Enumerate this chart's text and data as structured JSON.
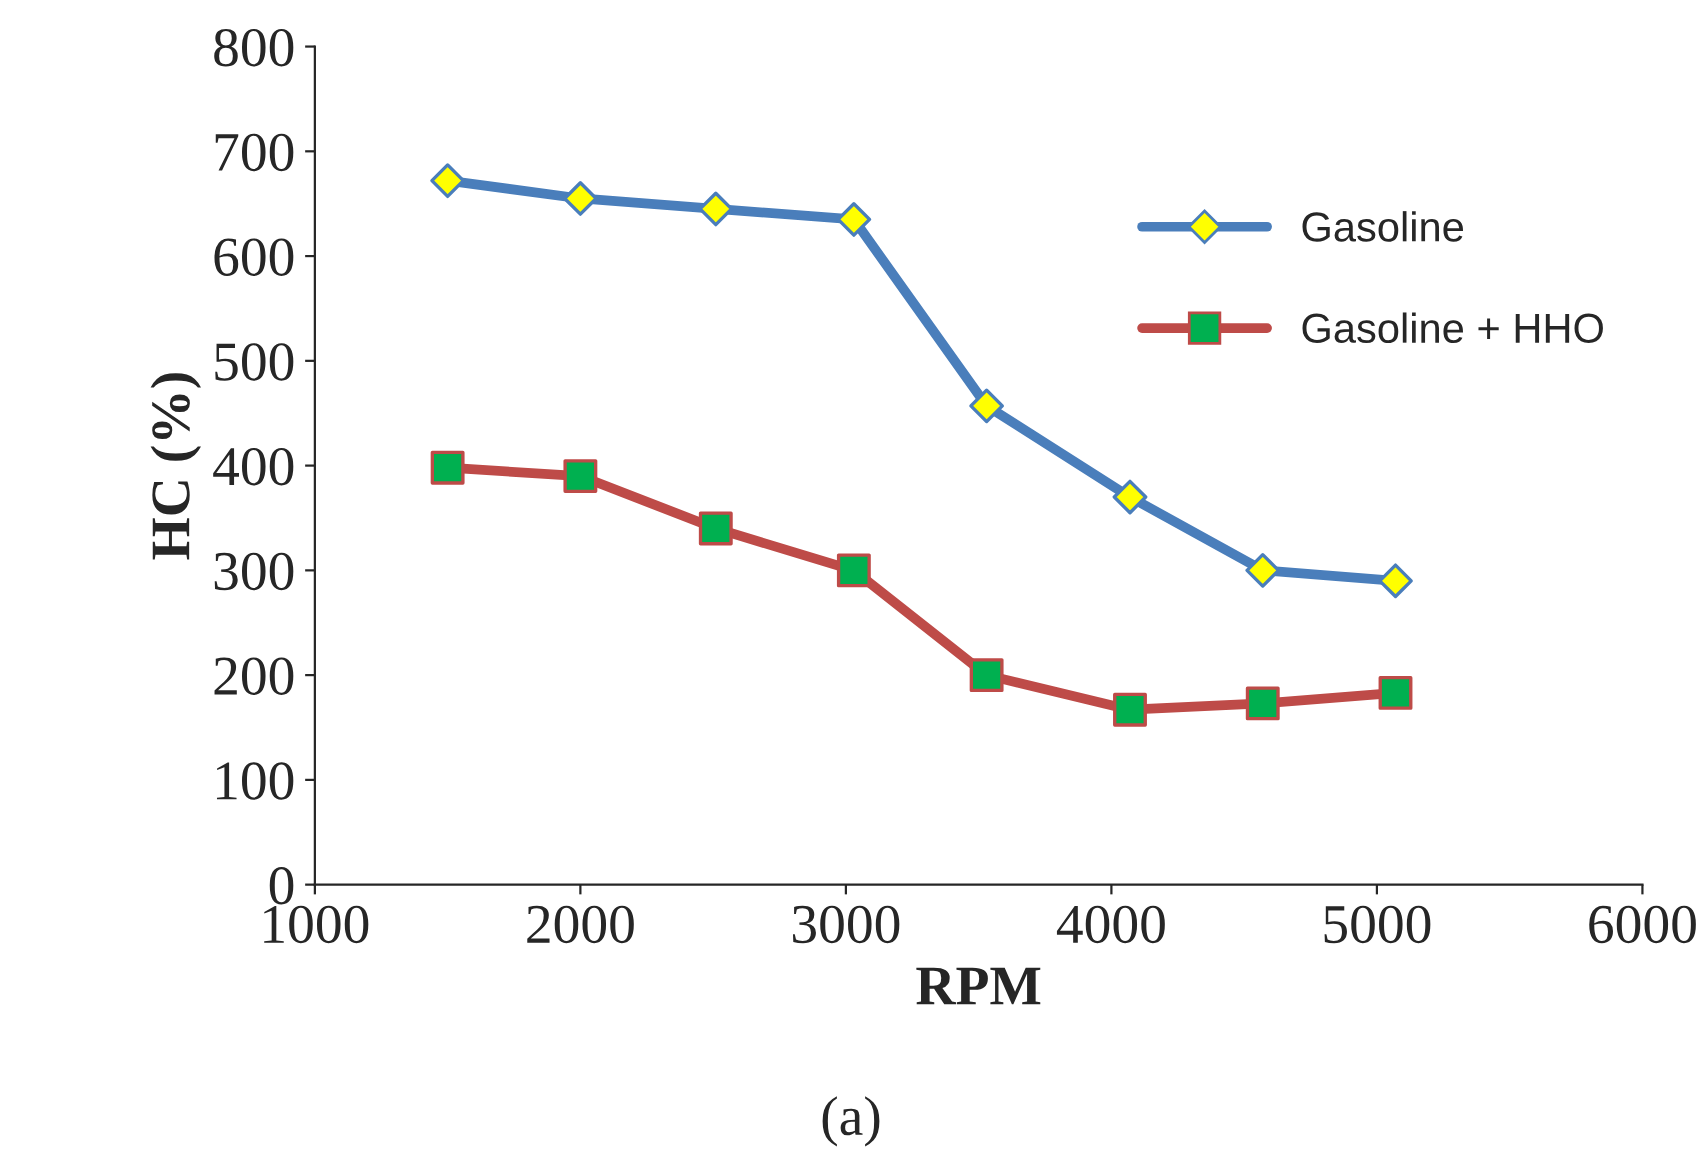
{
  "chart_data": {
    "type": "line",
    "xlabel": "RPM",
    "ylabel": "HC (%)",
    "annotations": [
      "(a)"
    ],
    "x": [
      1500,
      2000,
      2510,
      3030,
      3530,
      4070,
      4570,
      5070
    ],
    "series": [
      {
        "name": "Gasoline",
        "color": "#4a7ebb",
        "marker": "diamond",
        "colors": [
          "#ffff00",
          "#ffff00",
          "#ffff00",
          "#ffff00",
          "#ffff00",
          "#ffff00",
          "#ffff00",
          "#ffff00"
        ],
        "values": [
          672,
          655,
          645,
          635,
          457,
          370,
          300,
          290
        ]
      },
      {
        "name": "Gasoline + HHO",
        "color": "#be4b48",
        "marker": "square",
        "colors": [
          "#00b050",
          "#00b050",
          "#00b050",
          "#00b050",
          "#00b050",
          "#00b050",
          "#00b050",
          "#00b050"
        ],
        "values": [
          398,
          390,
          340,
          300,
          200,
          167,
          173,
          183
        ]
      }
    ],
    "xlim": [
      1000,
      6000
    ],
    "xticks": [
      1000,
      2000,
      3000,
      4000,
      5000,
      6000
    ],
    "ylim": [
      0,
      800
    ],
    "yticks": [
      0,
      100,
      200,
      300,
      400,
      500,
      600,
      700,
      800
    ],
    "grid": false,
    "legend": "right",
    "line_style": "solid"
  }
}
